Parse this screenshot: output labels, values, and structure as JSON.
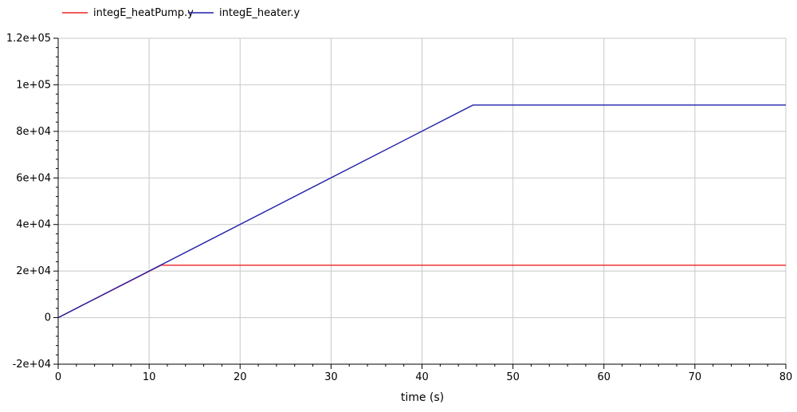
{
  "chart_data": {
    "type": "line",
    "title": "",
    "xlabel": "time (s)",
    "ylabel": "",
    "xlim": [
      0,
      80
    ],
    "ylim": [
      -20000,
      120000
    ],
    "xticks": [
      0,
      10,
      20,
      30,
      40,
      50,
      60,
      70,
      80
    ],
    "xtick_labels": [
      "0",
      "10",
      "20",
      "30",
      "40",
      "50",
      "60",
      "70",
      "80"
    ],
    "yticks": [
      -20000,
      0,
      20000,
      40000,
      60000,
      80000,
      100000,
      120000
    ],
    "ytick_labels": [
      "-2e+04",
      "0",
      "2e+04",
      "4e+04",
      "6e+04",
      "8e+04",
      "1e+05",
      "1.2e+05"
    ],
    "grid": true,
    "legend_position": "top-left",
    "series": [
      {
        "name": "integE_heatPump.y",
        "color": "#ee2222",
        "x": [
          0,
          11.3,
          80
        ],
        "y": [
          0,
          22500,
          22500
        ]
      },
      {
        "name": "integE_heater.y",
        "color": "#1f1fa8",
        "x": [
          0,
          45.6,
          80
        ],
        "y": [
          0,
          91300,
          91300
        ]
      }
    ]
  }
}
